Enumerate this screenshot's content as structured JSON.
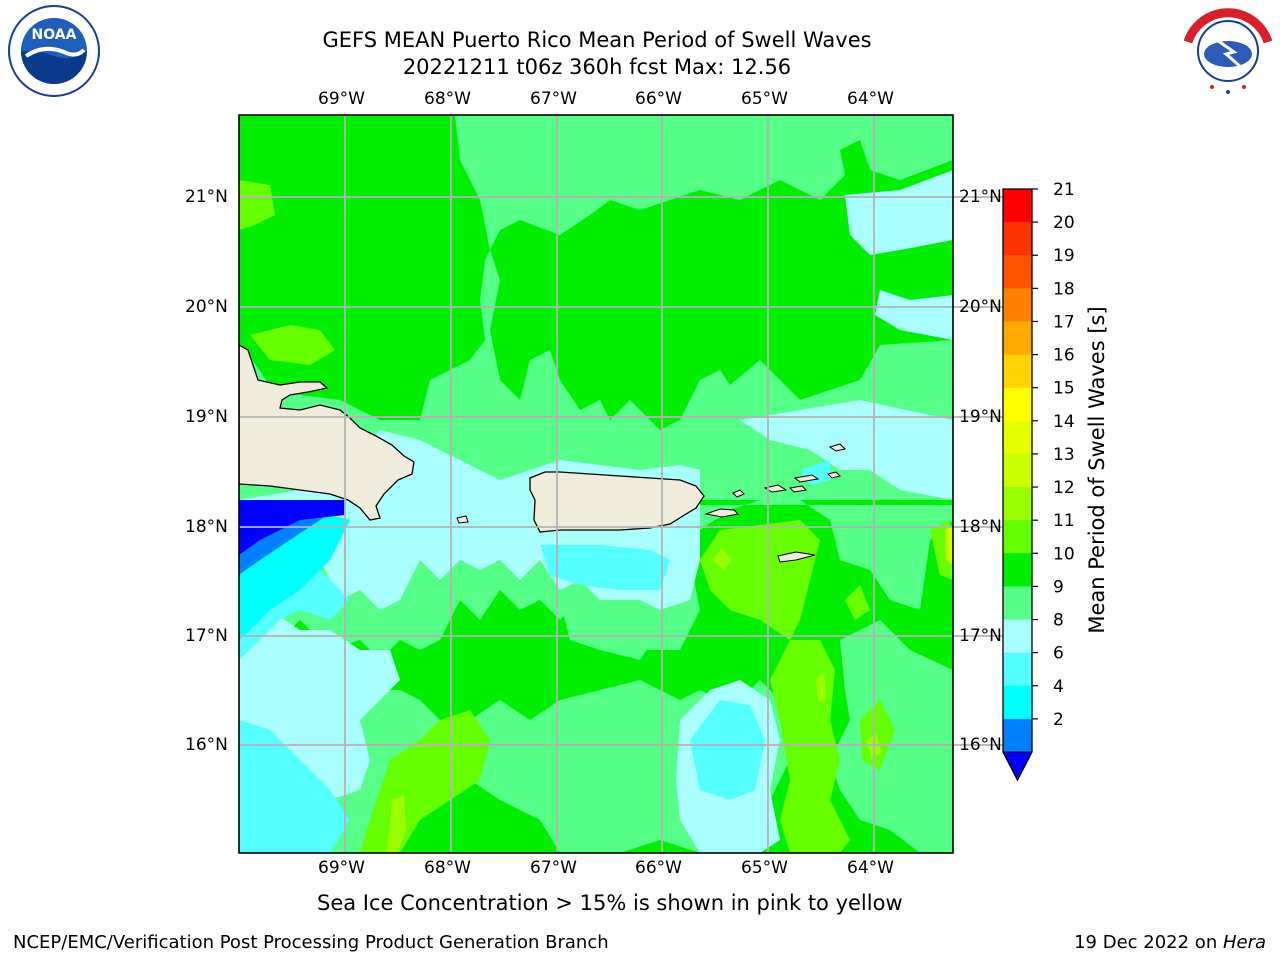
{
  "title": {
    "line1": "GEFS MEAN Puerto Rico Mean Period of Swell Waves",
    "line2": "20221211 t06z 360h fcst   Max: 12.56"
  },
  "map": {
    "lon_labels": [
      "69°W",
      "68°W",
      "67°W",
      "66°W",
      "65°W",
      "64°W"
    ],
    "lat_labels": [
      "21°N",
      "20°N",
      "19°N",
      "18°N",
      "17°N",
      "16°N"
    ],
    "extent": {
      "lon": [
        -70,
        -63.3
      ],
      "lat": [
        15.05,
        21.75
      ]
    }
  },
  "colorbar": {
    "label": "Mean Period of Swell Waves [s]",
    "ticks": [
      "21",
      "20",
      "19",
      "18",
      "17",
      "16",
      "15",
      "14",
      "13",
      "12",
      "11",
      "10",
      "9",
      "8",
      "6",
      "4",
      "2"
    ],
    "colors": [
      "#ff0000",
      "#ff3300",
      "#ff5500",
      "#ff7f00",
      "#ffaa00",
      "#ffd400",
      "#ffff00",
      "#e6ff00",
      "#ccff00",
      "#99ff00",
      "#66ff00",
      "#00ee00",
      "#55ff88",
      "#aaffff",
      "#55ffff",
      "#00ffff",
      "#0080ff"
    ],
    "extend_color": "#0000ff"
  },
  "note": "Sea Ice Concentration > 15% is shown in pink to yellow",
  "footer": {
    "left": "NCEP/EMC/Verification Post Processing Product Generation Branch",
    "right_date": "19 Dec 2022 on ",
    "right_machine": "Hera"
  },
  "logos": {
    "left": "NOAA",
    "right": "NATIONAL WEATHER SERVICE"
  }
}
